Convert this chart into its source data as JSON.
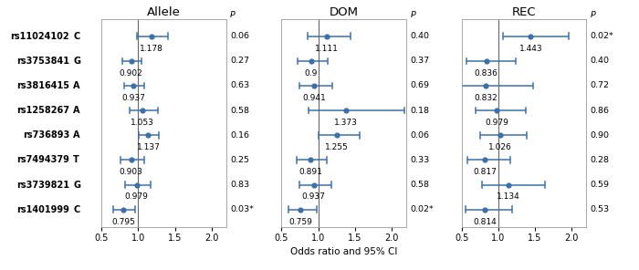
{
  "loci": [
    "rs11024102",
    "rs3753841",
    "rs3816415",
    "rs1258267",
    "rs736893",
    "rs7494379",
    "rs3739821",
    "rs1401999"
  ],
  "alleles": [
    "C",
    "G",
    "A",
    "A",
    "A",
    "T",
    "G",
    "C"
  ],
  "panels": {
    "Allele": {
      "or": [
        1.178,
        0.902,
        0.937,
        1.053,
        1.137,
        0.903,
        0.979,
        0.795
      ],
      "ci_lo": [
        0.985,
        0.778,
        0.808,
        0.877,
        1.01,
        0.757,
        0.818,
        0.656
      ],
      "ci_hi": [
        1.408,
        1.046,
        1.086,
        1.264,
        1.28,
        1.077,
        1.171,
        0.963
      ],
      "pval": [
        "0.06",
        "0.27",
        "0.63",
        "0.58",
        "0.16",
        "0.25",
        "0.83",
        "0.03*"
      ]
    },
    "DOM": {
      "or": [
        1.111,
        0.9,
        0.941,
        1.373,
        1.255,
        0.891,
        0.937,
        0.759
      ],
      "ci_lo": [
        0.855,
        0.717,
        0.744,
        0.868,
        1.01,
        0.71,
        0.748,
        0.59
      ],
      "ci_hi": [
        1.443,
        1.13,
        1.189,
        2.171,
        1.56,
        1.117,
        1.174,
        0.978
      ],
      "pval": [
        "0.40",
        "0.37",
        "0.69",
        "0.18",
        "0.06",
        "0.33",
        "0.58",
        "0.02*"
      ]
    },
    "REC": {
      "or": [
        1.443,
        0.836,
        0.832,
        0.979,
        1.026,
        0.817,
        1.134,
        0.814
      ],
      "ci_lo": [
        1.063,
        0.561,
        0.467,
        0.694,
        0.757,
        0.575,
        0.784,
        0.555
      ],
      "ci_hi": [
        1.959,
        1.244,
        1.482,
        1.381,
        1.39,
        1.161,
        1.639,
        1.193
      ],
      "pval": [
        "0.02*",
        "0.40",
        "0.72",
        "0.86",
        "0.90",
        "0.28",
        "0.59",
        "0.53"
      ]
    }
  },
  "xlim": [
    0.5,
    2.2
  ],
  "xticks": [
    0.5,
    1.0,
    1.5,
    2.0
  ],
  "ref_line": 1.0,
  "dot_color": "#3d6fa8",
  "line_color": "#3d6fa8",
  "xlabel": "Odds ratio and 95% CI",
  "background_color": "#ffffff",
  "panel_titles": [
    "Allele",
    "DOM",
    "REC"
  ],
  "label_fontsize": 7.0,
  "title_fontsize": 9.5,
  "pval_fontsize": 6.8,
  "or_fontsize": 6.5,
  "tick_fontsize": 7.0
}
